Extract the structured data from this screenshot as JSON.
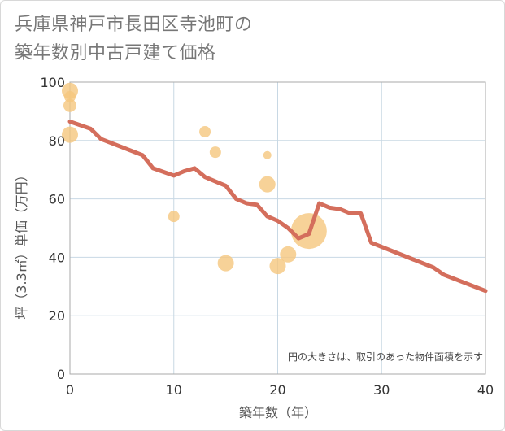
{
  "page": {
    "title_line1": "兵庫県神戸市長田区寺池町の",
    "title_line2": "築年数別中古戸建て価格"
  },
  "colors": {
    "line": "#d46e5c",
    "bubble": "#f5c77e",
    "grid": "#c8d8e4",
    "plot_border": "#aaaaaa"
  },
  "chart_data": {
    "type": "scatter",
    "title": "兵庫県神戸市長田区寺池町の築年数別中古戸建て価格",
    "xlabel": "築年数（年）",
    "ylabel": "坪（3.3㎡）単価（万円）",
    "xlim": [
      0,
      40
    ],
    "ylim": [
      0,
      100
    ],
    "xticks": [
      0,
      10,
      20,
      30,
      40
    ],
    "yticks": [
      0,
      20,
      40,
      60,
      80,
      100
    ],
    "grid": true,
    "note": "円の大きさは、取引のあった物件面積を示す",
    "series": [
      {
        "kind": "bubble",
        "points": [
          {
            "x": 0,
            "y": 97,
            "size": 10
          },
          {
            "x": 0,
            "y": 95,
            "size": 7
          },
          {
            "x": 0,
            "y": 92,
            "size": 8
          },
          {
            "x": 0,
            "y": 82,
            "size": 10
          },
          {
            "x": 10,
            "y": 54,
            "size": 7
          },
          {
            "x": 13,
            "y": 83,
            "size": 7
          },
          {
            "x": 14,
            "y": 76,
            "size": 7
          },
          {
            "x": 15,
            "y": 38,
            "size": 10
          },
          {
            "x": 19,
            "y": 75,
            "size": 5
          },
          {
            "x": 19,
            "y": 65,
            "size": 10
          },
          {
            "x": 20,
            "y": 37,
            "size": 10
          },
          {
            "x": 21,
            "y": 41,
            "size": 10
          },
          {
            "x": 23,
            "y": 49,
            "size": 22
          }
        ]
      },
      {
        "kind": "line",
        "points": [
          {
            "x": 0,
            "y": 86.5
          },
          {
            "x": 2,
            "y": 84
          },
          {
            "x": 3,
            "y": 80.5
          },
          {
            "x": 7,
            "y": 75
          },
          {
            "x": 8,
            "y": 70.5
          },
          {
            "x": 10,
            "y": 68
          },
          {
            "x": 11,
            "y": 69.5
          },
          {
            "x": 12,
            "y": 70.5
          },
          {
            "x": 13,
            "y": 67.5
          },
          {
            "x": 15,
            "y": 64.5
          },
          {
            "x": 16,
            "y": 60
          },
          {
            "x": 17,
            "y": 58.5
          },
          {
            "x": 18,
            "y": 58
          },
          {
            "x": 19,
            "y": 54
          },
          {
            "x": 20,
            "y": 52.5
          },
          {
            "x": 21,
            "y": 50
          },
          {
            "x": 22,
            "y": 46.5
          },
          {
            "x": 23,
            "y": 48
          },
          {
            "x": 24,
            "y": 58.5
          },
          {
            "x": 25,
            "y": 57
          },
          {
            "x": 26,
            "y": 56.5
          },
          {
            "x": 27,
            "y": 55
          },
          {
            "x": 28,
            "y": 55
          },
          {
            "x": 29,
            "y": 45
          },
          {
            "x": 35,
            "y": 36.5
          },
          {
            "x": 36,
            "y": 34
          },
          {
            "x": 40,
            "y": 28.5
          }
        ]
      }
    ]
  }
}
